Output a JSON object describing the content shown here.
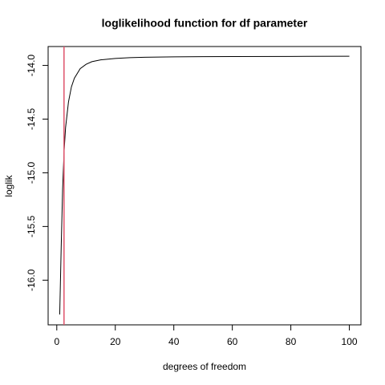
{
  "chart_data": {
    "type": "line",
    "title": "loglikelihood function for df parameter",
    "xlabel": "degrees of freedom",
    "ylabel": "loglik",
    "x": [
      1,
      1.5,
      2,
      2.5,
      3,
      4,
      5,
      6,
      8,
      10,
      12,
      15,
      20,
      25,
      30,
      40,
      50,
      60,
      80,
      100
    ],
    "series": [
      {
        "color": "#000000",
        "values": [
          -16.32,
          -15.7,
          -15.15,
          -14.8,
          -14.58,
          -14.34,
          -14.2,
          -14.12,
          -14.03,
          -13.99,
          -13.965,
          -13.948,
          -13.935,
          -13.928,
          -13.924,
          -13.92,
          -13.918,
          -13.917,
          -13.916,
          -13.915
        ]
      }
    ],
    "vline": {
      "value": 2.47,
      "color": "#df536b"
    },
    "xlim": [
      -2.96,
      103.96
    ],
    "ylim": [
      -16.416,
      -13.824
    ],
    "xticks": [
      0,
      20,
      40,
      60,
      80,
      100
    ],
    "yticks": [
      {
        "value": -14.0,
        "label": "-14.0"
      },
      {
        "value": -14.5,
        "label": "-14.5"
      },
      {
        "value": -15.0,
        "label": "-15.0"
      },
      {
        "value": -15.5,
        "label": "-15.5"
      },
      {
        "value": -16.0,
        "label": "-16.0"
      }
    ]
  }
}
